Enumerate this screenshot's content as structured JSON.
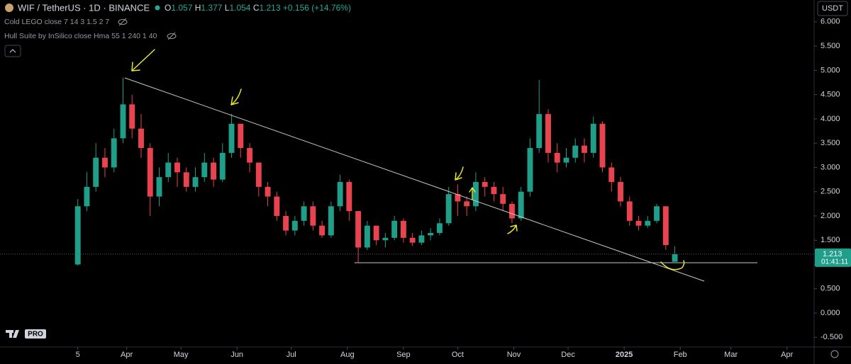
{
  "header": {
    "symbol": "WIF / TetherUS · 1D · BINANCE",
    "ohlc_labels": [
      "O",
      "H",
      "L",
      "C"
    ],
    "change": "+0.156 (+14.76%)",
    "indicators": [
      "Cold LEGO close 7 14 3 1.5 2 7",
      "Hull Suite by InSilico close Hma 55 1 240 1 40"
    ],
    "currency": "USDT",
    "timer": "01:41:11",
    "logo": "PRO"
  },
  "chart_data": {
    "type": "candlestick",
    "x": [
      0,
      5,
      10,
      15,
      20,
      25,
      30,
      35,
      40,
      45,
      50,
      55,
      60,
      65,
      70,
      75,
      80,
      85,
      90,
      95,
      100,
      105,
      110,
      115,
      120,
      125,
      130,
      135,
      140,
      145,
      150,
      155,
      160,
      165,
      170,
      175,
      180,
      185,
      190,
      195,
      200,
      205,
      210,
      215,
      220,
      225,
      230,
      235,
      240,
      245,
      250,
      255,
      260,
      265,
      270,
      275,
      280,
      285,
      290,
      295,
      300,
      305,
      310,
      315,
      320,
      325,
      330
    ],
    "open": [
      1.0,
      2.2,
      2.6,
      3.2,
      3.0,
      3.6,
      4.3,
      3.8,
      3.4,
      2.4,
      2.8,
      3.1,
      2.9,
      2.6,
      2.8,
      3.1,
      2.75,
      3.3,
      3.9,
      3.4,
      3.1,
      2.6,
      2.4,
      2.0,
      1.7,
      1.9,
      2.2,
      1.8,
      1.6,
      2.2,
      2.7,
      2.1,
      1.35,
      1.8,
      1.5,
      1.55,
      1.9,
      1.55,
      1.45,
      1.6,
      1.65,
      1.85,
      2.45,
      2.3,
      2.2,
      2.7,
      2.6,
      2.45,
      2.25,
      1.95,
      2.5,
      3.4,
      4.1,
      3.3,
      3.1,
      3.2,
      3.45,
      3.3,
      3.9,
      3.0,
      2.7,
      2.3,
      1.9,
      1.8,
      1.9,
      2.2,
      1.057
    ],
    "high": [
      2.35,
      2.9,
      3.5,
      3.4,
      3.8,
      4.85,
      4.5,
      4.1,
      3.5,
      3.0,
      3.3,
      3.2,
      3.0,
      3.0,
      3.3,
      3.2,
      3.5,
      4.1,
      3.9,
      3.5,
      3.1,
      2.7,
      2.5,
      2.1,
      2.0,
      2.3,
      2.3,
      1.9,
      2.3,
      2.85,
      2.75,
      2.1,
      1.9,
      1.8,
      1.65,
      2.0,
      1.95,
      1.65,
      1.7,
      1.75,
      1.95,
      2.6,
      2.65,
      2.4,
      2.9,
      2.8,
      2.7,
      2.6,
      2.3,
      2.6,
      3.6,
      4.8,
      4.2,
      3.5,
      3.4,
      3.6,
      3.6,
      4.05,
      3.95,
      3.1,
      2.8,
      2.4,
      2.0,
      2.0,
      2.25,
      2.2,
      1.377
    ],
    "low": [
      0.98,
      2.1,
      2.5,
      2.8,
      2.9,
      3.5,
      3.6,
      3.2,
      2.0,
      2.2,
      2.7,
      2.6,
      2.5,
      2.5,
      2.7,
      2.6,
      2.7,
      3.2,
      3.2,
      2.9,
      2.4,
      2.2,
      1.9,
      1.6,
      1.6,
      1.8,
      1.7,
      1.55,
      1.55,
      2.1,
      1.9,
      1.05,
      1.3,
      1.4,
      1.35,
      1.5,
      1.45,
      1.38,
      1.4,
      1.5,
      1.6,
      1.8,
      2.0,
      2.0,
      2.1,
      2.4,
      2.3,
      2.1,
      1.85,
      1.9,
      2.4,
      3.3,
      3.1,
      2.9,
      3.0,
      3.1,
      3.1,
      3.2,
      2.9,
      2.5,
      2.2,
      1.8,
      1.7,
      1.75,
      1.85,
      1.3,
      1.054
    ],
    "close": [
      2.2,
      2.6,
      3.2,
      3.0,
      3.6,
      4.3,
      3.8,
      3.4,
      2.4,
      2.8,
      3.1,
      2.9,
      2.6,
      2.8,
      3.1,
      2.75,
      3.3,
      3.9,
      3.4,
      3.1,
      2.6,
      2.4,
      2.0,
      1.7,
      1.9,
      2.2,
      1.8,
      1.6,
      2.2,
      2.7,
      2.1,
      1.35,
      1.8,
      1.5,
      1.55,
      1.9,
      1.55,
      1.45,
      1.6,
      1.65,
      1.85,
      2.45,
      2.3,
      2.2,
      2.7,
      2.6,
      2.45,
      2.25,
      1.95,
      2.5,
      3.4,
      4.1,
      3.3,
      3.1,
      3.2,
      3.45,
      3.3,
      3.9,
      3.0,
      2.7,
      2.3,
      1.9,
      1.8,
      1.9,
      2.2,
      1.4,
      1.213
    ],
    "up_color": "#1f9e89",
    "down_color": "#e8434f",
    "grid": false,
    "xlim": [
      -43,
      407
    ],
    "xticks": [
      {
        "value": 0,
        "label": "5"
      },
      {
        "value": 27,
        "label": "Apr"
      },
      {
        "value": 57,
        "label": "May"
      },
      {
        "value": 88,
        "label": "Jun"
      },
      {
        "value": 118,
        "label": "Jul"
      },
      {
        "value": 149,
        "label": "Aug"
      },
      {
        "value": 180,
        "label": "Sep"
      },
      {
        "value": 210,
        "label": "Oct"
      },
      {
        "value": 241,
        "label": "Nov"
      },
      {
        "value": 271,
        "label": "Dec"
      },
      {
        "value": 302,
        "label": "2025"
      },
      {
        "value": 333,
        "label": "Feb"
      },
      {
        "value": 361,
        "label": "Mar"
      },
      {
        "value": 392,
        "label": "Apr"
      }
    ],
    "ylim": [
      -0.7,
      6.45
    ],
    "yticks": [
      {
        "value": -0.5,
        "label": "-0.500"
      },
      {
        "value": 0,
        "label": "0.000"
      },
      {
        "value": 0.5,
        "label": "0.500"
      },
      {
        "value": 1,
        "label": "1.000"
      },
      {
        "value": 1.5,
        "label": "1.500"
      },
      {
        "value": 2,
        "label": "2.000"
      },
      {
        "value": 2.5,
        "label": "2.500"
      },
      {
        "value": 3,
        "label": "3.000"
      },
      {
        "value": 3.5,
        "label": "3.500"
      },
      {
        "value": 4,
        "label": "4.000"
      },
      {
        "value": 4.5,
        "label": "4.500"
      },
      {
        "value": 5,
        "label": "5.000"
      },
      {
        "value": 5.5,
        "label": "5.500"
      },
      {
        "value": 6,
        "label": "6.000"
      }
    ]
  }
}
